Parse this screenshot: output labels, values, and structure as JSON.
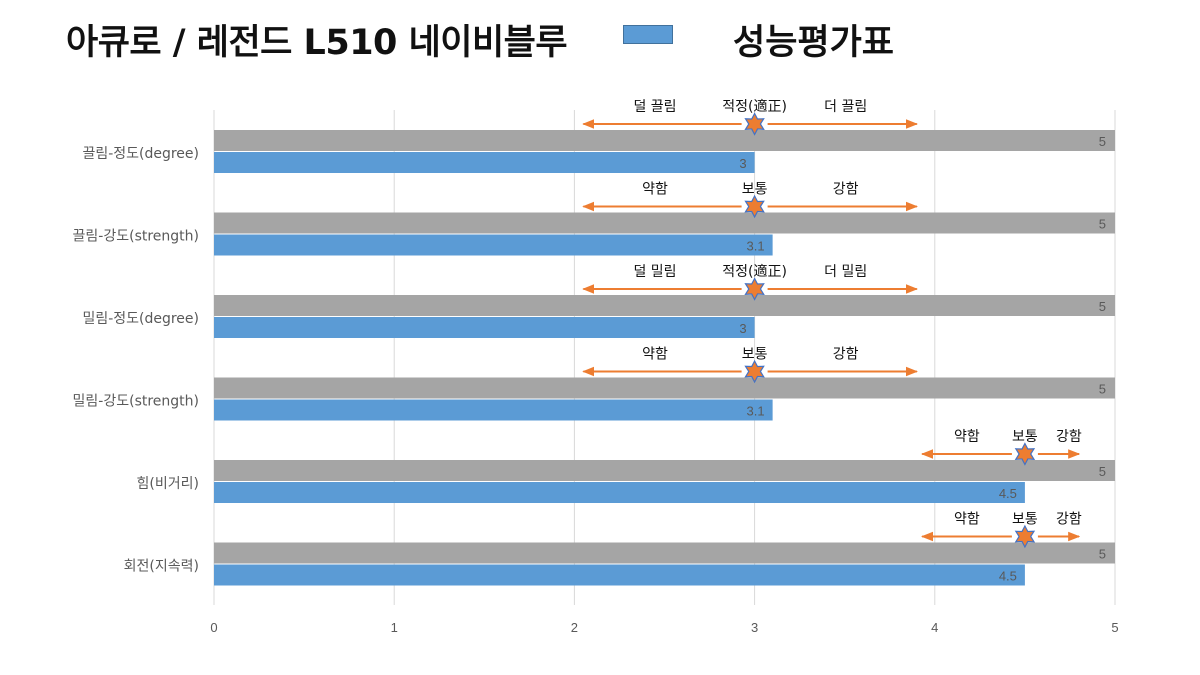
{
  "title": "아큐로 / 레전드 L510 네이비블루",
  "legend_label": "성능평가표",
  "colors": {
    "series_bar": "#5b9bd5",
    "max_bar": "#a5a5a5",
    "arrow": "#ed7d31",
    "star_fill": "#ed7d31",
    "star_stroke": "#4472c4",
    "grid": "#d9d9d9",
    "axis_text": "#595959"
  },
  "chart_data": {
    "type": "bar",
    "orientation": "horizontal",
    "categories": [
      "끌림-정도(degree)",
      "끌림-강도(strength)",
      "밀림-정도(degree)",
      "밀림-강도(strength)",
      "힘(비거리)",
      "회전(지속력)"
    ],
    "series": [
      {
        "values": [
          5,
          5,
          5,
          5,
          5,
          5
        ]
      },
      {
        "name": "성능평가표",
        "values": [
          3,
          3.1,
          3,
          3.1,
          4.5,
          4.5
        ]
      }
    ],
    "xlim": [
      0,
      5
    ],
    "xticks": [
      "0",
      "1",
      "2",
      "3",
      "4",
      "5"
    ],
    "grid": true,
    "legend": "top",
    "annotations": [
      {
        "left": "덜 끌림",
        "mid": "적정(適正)",
        "right": "더 끌림",
        "marker": 3,
        "arrow_from": 2.05,
        "arrow_to": 3.9
      },
      {
        "left": "약함",
        "mid": "보통",
        "right": "강함",
        "marker": 3,
        "arrow_from": 2.05,
        "arrow_to": 3.9
      },
      {
        "left": "덜 밀림",
        "mid": "적정(適正)",
        "right": "더 밀림",
        "marker": 3,
        "arrow_from": 2.05,
        "arrow_to": 3.9
      },
      {
        "left": "약함",
        "mid": "보통",
        "right": "강함",
        "marker": 3,
        "arrow_from": 2.05,
        "arrow_to": 3.9
      },
      {
        "left": "약함",
        "mid": "보통",
        "right": "강함",
        "marker": 4.5,
        "arrow_from": 3.93,
        "arrow_to": 4.8
      },
      {
        "left": "약함",
        "mid": "보통",
        "right": "강함",
        "marker": 4.5,
        "arrow_from": 3.93,
        "arrow_to": 4.8
      }
    ]
  }
}
